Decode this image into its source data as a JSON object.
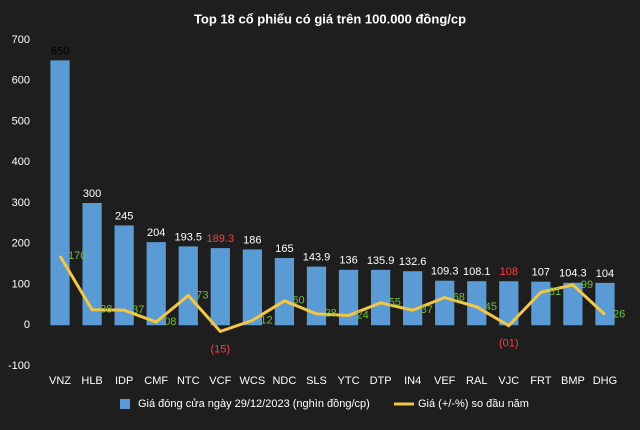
{
  "chart_data": {
    "type": "bar_line",
    "title": "Top 18 cổ phiếu có giá trên 100.000 đồng/cp",
    "categories": [
      "VNZ",
      "HLB",
      "IDP",
      "CMF",
      "NTC",
      "VCF",
      "WCS",
      "NDC",
      "SLS",
      "YTC",
      "DTP",
      "IN4",
      "VEF",
      "RAL",
      "VJC",
      "FRT",
      "BMP",
      "DHG"
    ],
    "series": [
      {
        "name": "Giá đóng cửa ngày 29/12/2023 (nghìn đồng/cp)",
        "type": "bar",
        "color": "#5b9bd5",
        "values": [
          650,
          300,
          245,
          204,
          193.5,
          189.3,
          186,
          165,
          143.9,
          136,
          135.9,
          132.6,
          109.3,
          108.1,
          108,
          107,
          104.3,
          104
        ],
        "label_colors": [
          "#000000",
          "#ffffff",
          "#ffffff",
          "#ffffff",
          "#ffffff",
          "#ff3b3b",
          "#ffffff",
          "#ffffff",
          "#ffffff",
          "#ffffff",
          "#ffffff",
          "#ffffff",
          "#ffffff",
          "#ffffff",
          "#ff3b3b",
          "#ffffff",
          "#ffffff",
          "#ffffff"
        ]
      },
      {
        "name": "Giá (+/-%) so đầu năm",
        "type": "line",
        "color": "#f2c744",
        "values": [
          170,
          38,
          37,
          8,
          73,
          -15,
          12,
          60,
          28,
          24,
          55,
          37,
          68,
          45,
          -1,
          81,
          99,
          26
        ],
        "value_labels": [
          "170",
          "38",
          "37",
          "08",
          "73",
          "(15)",
          "12",
          "60",
          "28",
          "24",
          "55",
          "37",
          "68",
          "45",
          "(01)",
          "81",
          "99",
          "26"
        ],
        "label_colors": [
          "#6fbf3f",
          "#6fbf3f",
          "#6fbf3f",
          "#6fbf3f",
          "#6fbf3f",
          "#ff3b3b",
          "#6fbf3f",
          "#6fbf3f",
          "#6fbf3f",
          "#6fbf3f",
          "#6fbf3f",
          "#6fbf3f",
          "#6fbf3f",
          "#6fbf3f",
          "#ff3b3b",
          "#6fbf3f",
          "#6fbf3f",
          "#6fbf3f"
        ]
      }
    ],
    "ylim": [
      -100,
      700
    ],
    "yticks": [
      -100,
      0,
      100,
      200,
      300,
      400,
      500,
      600,
      700
    ],
    "grid": false
  }
}
